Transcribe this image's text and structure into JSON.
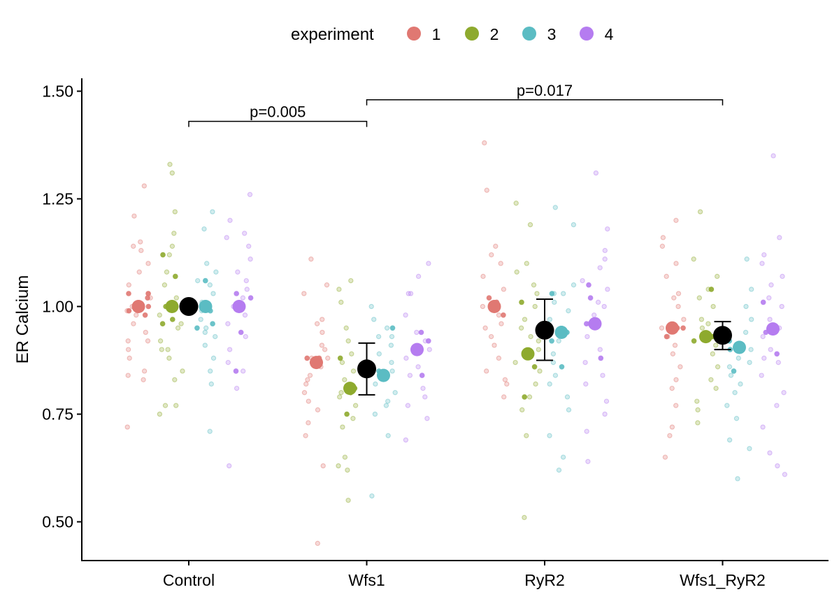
{
  "chart_data": {
    "type": "scatter",
    "title": "",
    "xlabel": "",
    "ylabel": "ER Calcium",
    "ylim": [
      0.41,
      1.53
    ],
    "yticks": [
      0.5,
      0.75,
      1.0,
      1.25,
      1.5
    ],
    "ytick_labels": [
      "0.50",
      "0.75",
      "1.00",
      "1.25",
      "1.50"
    ],
    "categories": [
      "Control",
      "Wfs1",
      "RyR2",
      "Wfs1_RyR2"
    ],
    "grid": false,
    "legend": {
      "title": "experiment",
      "position": "top",
      "entries": [
        {
          "label": "1",
          "color": "#E07872"
        },
        {
          "label": "2",
          "color": "#8EAA2E"
        },
        {
          "label": "3",
          "color": "#5BBCC3"
        },
        {
          "label": "4",
          "color": "#B57CF0"
        }
      ]
    },
    "series": [
      {
        "name": "1",
        "color": "#E07872",
        "means": [
          1.0,
          0.87,
          1.0,
          0.95
        ]
      },
      {
        "name": "2",
        "color": "#8EAA2E",
        "means": [
          1.0,
          0.81,
          0.89,
          0.93
        ]
      },
      {
        "name": "3",
        "color": "#5BBCC3",
        "means": [
          1.0,
          0.84,
          0.94,
          0.905
        ]
      },
      {
        "name": "4",
        "color": "#B57CF0",
        "means": [
          1.0,
          0.9,
          0.96,
          0.948
        ]
      }
    ],
    "overall": {
      "color": "#000000",
      "mean": [
        1.0,
        0.855,
        0.945,
        0.933
      ],
      "lower": [
        1.0,
        0.795,
        0.875,
        0.9
      ],
      "upper": [
        1.0,
        0.915,
        1.017,
        0.965
      ]
    },
    "points": [
      [
        [
          [
            1.28,
            1.15,
            1.1,
            1.08,
            1.05,
            1.03,
            1.0,
            0.99,
            0.98,
            0.96,
            0.94,
            0.92,
            0.9,
            0.85,
            0.83,
            0.72,
            1.21,
            1.14,
            1.13,
            1.02,
            0.92,
            0.88,
            0.84,
            0.99
          ],
          [
            0.99,
            1.03,
            1.03,
            1.02,
            1.0,
            0.98,
            1.0
          ]
        ],
        [
          [
            1.33,
            1.31,
            1.22,
            1.17,
            1.14,
            1.12,
            1.08,
            1.05,
            1.02,
            1.0,
            0.98,
            0.96,
            0.92,
            0.9,
            0.88,
            0.85,
            0.83,
            0.77,
            0.75,
            0.77,
            0.9,
            0.95
          ],
          [
            1.07,
            0.96,
            0.97,
            1.0,
            1.12
          ]
        ],
        [
          [
            1.22,
            1.18,
            1.1,
            1.08,
            1.05,
            1.03,
            1.01,
            0.99,
            0.97,
            0.95,
            0.93,
            0.91,
            0.88,
            0.85,
            0.82,
            0.71,
            1.06,
            0.94
          ],
          [
            1.06,
            0.96,
            0.95,
            0.99
          ]
        ],
        [
          [
            1.26,
            1.2,
            1.17,
            1.16,
            1.14,
            1.11,
            1.08,
            1.06,
            1.04,
            1.02,
            1.0,
            0.98,
            0.96,
            0.93,
            0.9,
            0.87,
            0.85,
            0.81,
            0.63
          ],
          [
            1.03,
            1.02,
            0.94,
            0.85
          ]
        ]
      ],
      [
        [
          [
            1.11,
            1.05,
            1.03,
            0.97,
            0.96,
            0.94,
            0.91,
            0.9,
            0.88,
            0.86,
            0.84,
            0.82,
            0.8,
            0.78,
            0.76,
            0.73,
            0.7,
            0.63,
            0.45,
            0.88,
            0.83
          ],
          [
            0.87,
            0.87,
            0.88,
            0.88
          ]
        ],
        [
          [
            1.06,
            1.04,
            1.01,
            0.95,
            0.92,
            0.89,
            0.87,
            0.85,
            0.83,
            0.81,
            0.79,
            0.77,
            0.74,
            0.72,
            0.65,
            0.63,
            0.62,
            0.55,
            0.8
          ],
          [
            0.88,
            0.8,
            0.75,
            0.81
          ]
        ],
        [
          [
            1.0,
            0.97,
            0.95,
            0.93,
            0.91,
            0.89,
            0.87,
            0.85,
            0.82,
            0.8,
            0.78,
            0.77,
            0.75,
            0.7,
            0.56,
            0.93
          ],
          [
            0.85,
            0.95,
            0.84
          ]
        ],
        [
          [
            1.1,
            1.07,
            1.03,
            0.98,
            0.94,
            0.92,
            0.9,
            0.88,
            0.86,
            0.84,
            0.81,
            0.79,
            0.77,
            0.74,
            0.69,
            1.03
          ],
          [
            0.92,
            0.94,
            0.84,
            0.9
          ]
        ]
      ],
      [
        [
          [
            1.38,
            1.27,
            1.14,
            1.1,
            1.07,
            1.04,
            1.0,
            0.98,
            0.96,
            0.93,
            0.91,
            0.88,
            0.85,
            0.83,
            0.82,
            0.79,
            1.12,
            0.95
          ],
          [
            0.98,
            1.02,
            1.0,
            1.01
          ]
        ],
        [
          [
            1.24,
            1.19,
            1.1,
            1.08,
            1.05,
            1.03,
            1.0,
            0.97,
            0.95,
            0.93,
            0.9,
            0.87,
            0.85,
            0.82,
            0.79,
            0.76,
            0.7,
            0.51,
            0.92
          ],
          [
            1.01,
            0.86,
            0.79,
            0.89
          ]
        ],
        [
          [
            1.23,
            1.19,
            1.05,
            1.03,
            1.01,
            0.99,
            0.97,
            0.94,
            0.92,
            0.89,
            0.87,
            0.84,
            0.82,
            0.79,
            0.76,
            0.7,
            0.65,
            0.62,
            1.03
          ],
          [
            1.03,
            0.86,
            0.92,
            0.94
          ]
        ],
        [
          [
            1.31,
            1.18,
            1.13,
            1.11,
            1.09,
            1.06,
            1.04,
            1.01,
            0.98,
            0.96,
            0.93,
            0.9,
            0.87,
            0.84,
            0.82,
            0.78,
            0.75,
            0.71,
            0.64,
            1.0
          ],
          [
            1.05,
            1.02,
            0.96,
            0.88
          ]
        ]
      ],
      [
        [
          [
            1.2,
            1.16,
            1.14,
            1.1,
            1.07,
            1.03,
            1.0,
            0.97,
            0.95,
            0.93,
            0.91,
            0.89,
            0.86,
            0.83,
            0.81,
            0.77,
            0.72,
            0.7,
            0.65,
            1.02
          ],
          [
            0.95,
            0.95,
            0.93,
            0.95
          ]
        ],
        [
          [
            1.22,
            1.11,
            1.07,
            1.04,
            1.02,
            1.0,
            0.97,
            0.95,
            0.93,
            0.91,
            0.89,
            0.86,
            0.83,
            0.81,
            0.78,
            0.76,
            0.73,
            0.96
          ],
          [
            0.93,
            0.92,
            1.04,
            0.93
          ]
        ],
        [
          [
            1.11,
            1.04,
            1.0,
            0.97,
            0.94,
            0.92,
            0.9,
            0.88,
            0.86,
            0.84,
            0.82,
            0.8,
            0.77,
            0.74,
            0.69,
            0.67,
            0.6,
            0.87
          ],
          [
            0.85,
            0.92,
            0.9
          ]
        ],
        [
          [
            1.35,
            1.16,
            1.12,
            1.1,
            1.07,
            1.05,
            1.02,
            1.0,
            0.97,
            0.95,
            0.93,
            0.9,
            0.87,
            0.84,
            0.8,
            0.77,
            0.72,
            0.66,
            0.61,
            0.63,
            0.88
          ],
          [
            1.01,
            0.94,
            0.89,
            0.95
          ]
        ]
      ]
    ],
    "annotations": [
      {
        "label": "p=0.005",
        "from": "Control",
        "to": "Wfs1",
        "level": 1.43
      },
      {
        "label": "p=0.017",
        "from": "Wfs1",
        "to": "Wfs1_RyR2",
        "level": 1.48
      }
    ]
  }
}
